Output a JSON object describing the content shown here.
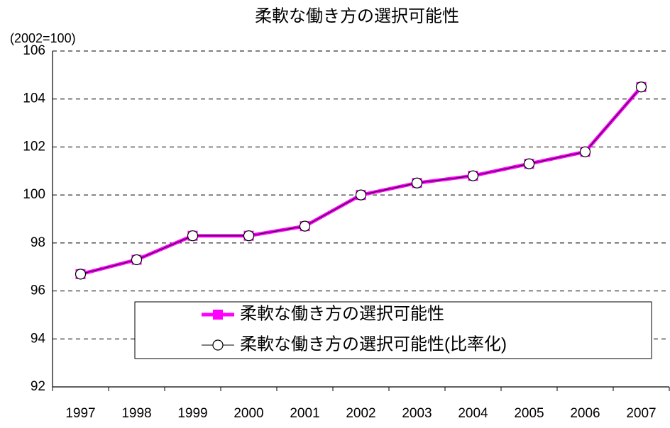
{
  "chart_data": {
    "type": "line",
    "title": "柔軟な働き方の選択可能性",
    "y_label": "(2002=100)",
    "categories": [
      "1997",
      "1998",
      "1999",
      "2000",
      "2001",
      "2002",
      "2003",
      "2004",
      "2005",
      "2006",
      "2007"
    ],
    "series": [
      {
        "name": "柔軟な働き方の選択可能性",
        "color": "#ff00ff",
        "values": [
          96.7,
          97.3,
          98.3,
          98.3,
          98.7,
          100,
          100.5,
          100.8,
          101.3,
          101.8,
          104.5
        ]
      },
      {
        "name": "柔軟な働き方の選択可能性(比率化)",
        "color": "#000000",
        "values": [
          96.7,
          97.3,
          98.3,
          98.3,
          98.7,
          100,
          100.5,
          100.8,
          101.3,
          101.8,
          104.5
        ]
      }
    ],
    "ylim": [
      92,
      106
    ],
    "yticks": [
      92,
      94,
      96,
      98,
      100,
      102,
      104,
      106
    ],
    "grid": true
  }
}
